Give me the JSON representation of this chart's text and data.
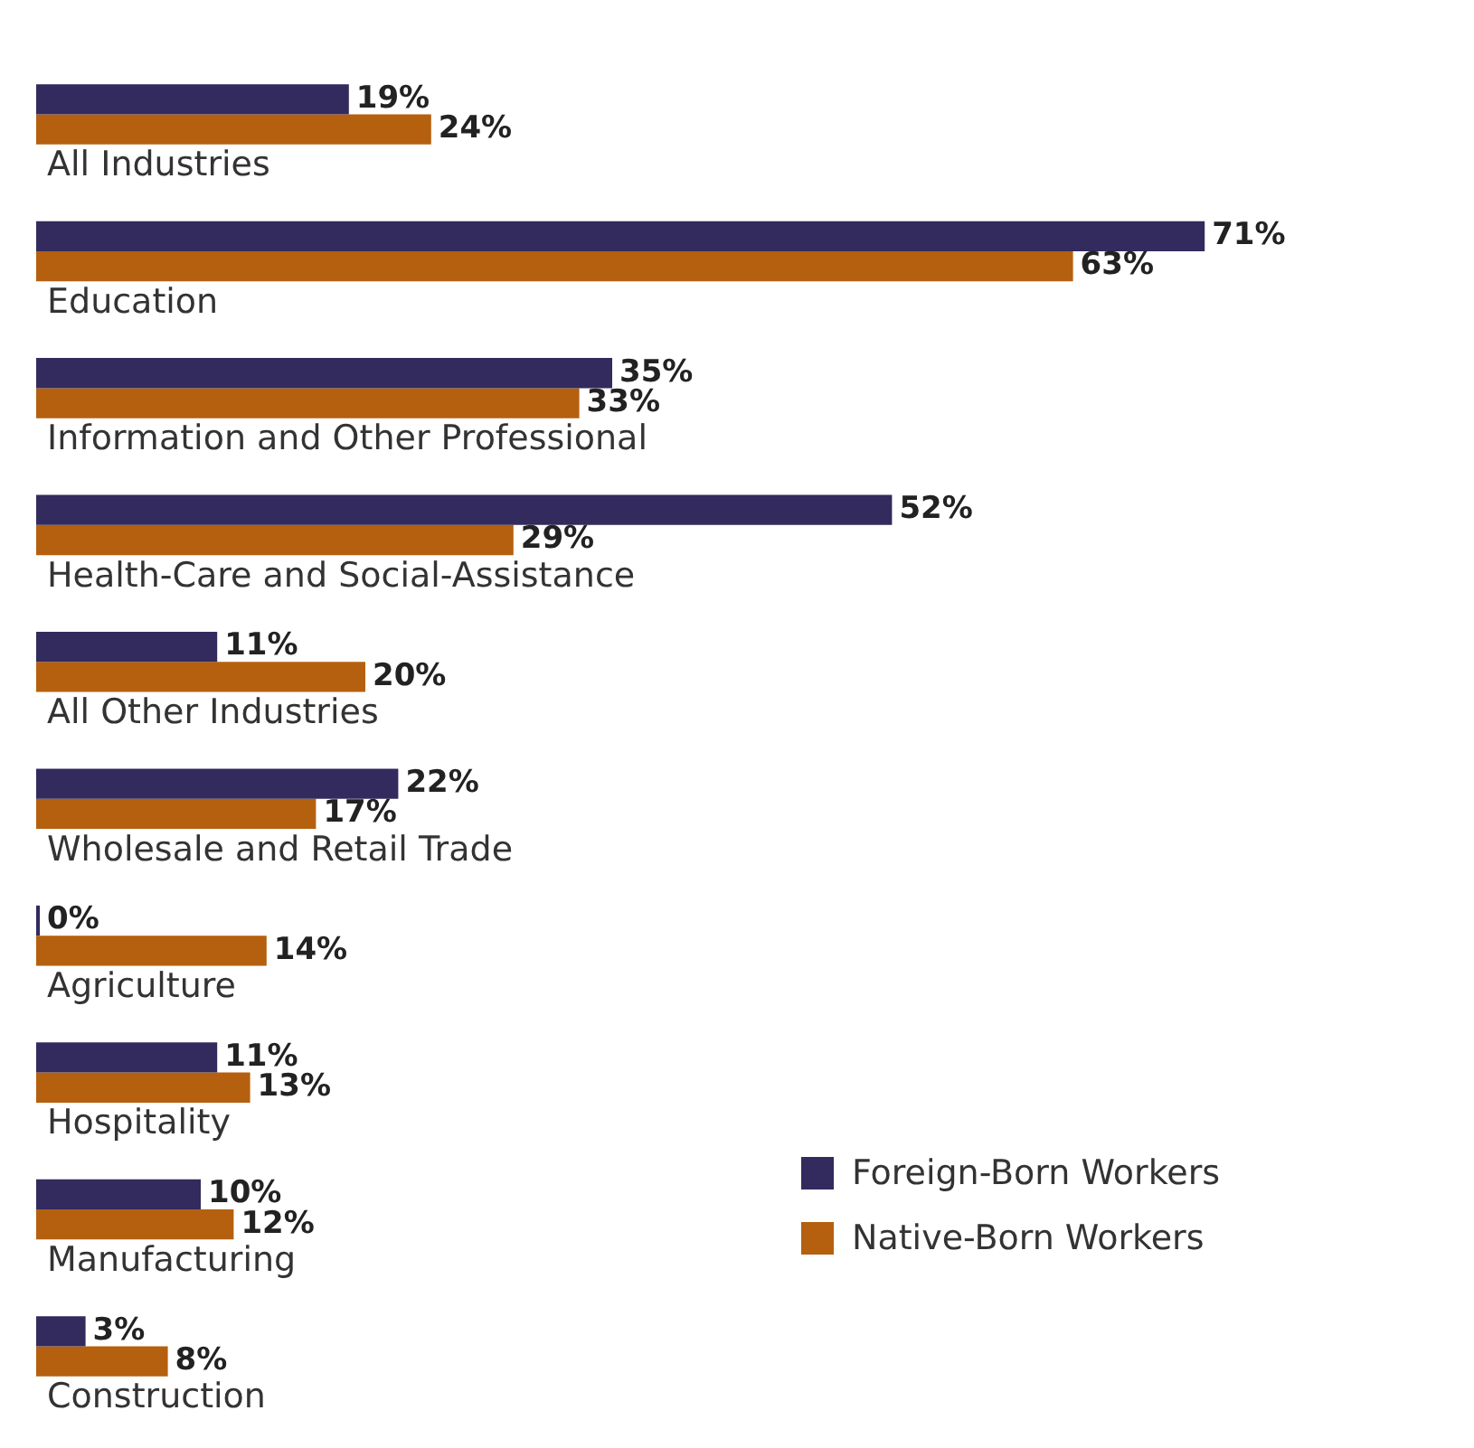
{
  "chart_data": {
    "type": "bar",
    "orientation": "horizontal",
    "categories": [
      "All Industries",
      "Education",
      "Information and Other Professional",
      "Health-Care and Social-Assistance",
      "All Other Industries",
      "Wholesale and Retail Trade",
      "Agriculture",
      "Hospitality",
      "Manufacturing",
      "Construction"
    ],
    "series": [
      {
        "name": "Foreign-Born Workers",
        "color": "#332a5e",
        "values": [
          19,
          71,
          35,
          52,
          11,
          22,
          0,
          11,
          10,
          3
        ],
        "value_labels": [
          "19%",
          "71%",
          "35%",
          "52%",
          "11%",
          "22%",
          "0%",
          "11%",
          "10%",
          "3%"
        ]
      },
      {
        "name": "Native-Born Workers",
        "color": "#b5600f",
        "values": [
          24,
          63,
          33,
          29,
          20,
          17,
          14,
          13,
          12,
          8
        ],
        "value_labels": [
          "24%",
          "63%",
          "33%",
          "29%",
          "20%",
          "17%",
          "14%",
          "13%",
          "12%",
          "8%"
        ]
      }
    ],
    "legend": "bottom right"
  }
}
